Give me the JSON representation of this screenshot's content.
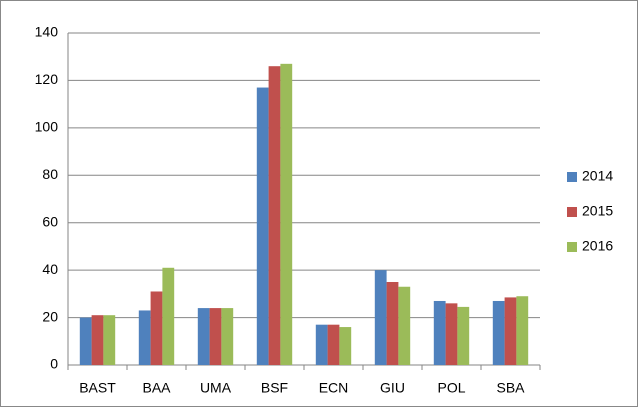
{
  "chart_data": {
    "type": "bar",
    "categories": [
      "BAST",
      "BAA",
      "UMA",
      "BSF",
      "ECN",
      "GIU",
      "POL",
      "SBA"
    ],
    "series": [
      {
        "name": "2014",
        "color": "#4f81bd",
        "values": [
          20,
          23,
          24,
          117,
          17,
          40,
          27,
          27
        ]
      },
      {
        "name": "2015",
        "color": "#c0504d",
        "values": [
          21,
          31,
          24,
          126,
          17,
          35,
          26,
          28.5
        ]
      },
      {
        "name": "2016",
        "color": "#9bbb59",
        "values": [
          21,
          41,
          24,
          127,
          16,
          33,
          24.5,
          29
        ]
      }
    ],
    "ylim": [
      0,
      140
    ],
    "yticks": [
      0,
      20,
      40,
      60,
      80,
      100,
      120,
      140
    ],
    "grid": true,
    "legend": "right"
  }
}
